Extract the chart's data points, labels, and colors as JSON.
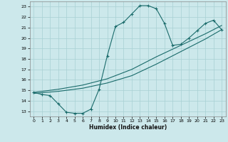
{
  "xlabel": "Humidex (Indice chaleur)",
  "bg_color": "#cce8eb",
  "grid_color": "#a8d0d4",
  "line_color": "#1a6b6b",
  "xlim": [
    -0.5,
    23.5
  ],
  "ylim": [
    12.5,
    23.5
  ],
  "xticks": [
    0,
    1,
    2,
    3,
    4,
    5,
    6,
    7,
    8,
    9,
    10,
    11,
    12,
    13,
    14,
    15,
    16,
    17,
    18,
    19,
    20,
    21,
    22,
    23
  ],
  "yticks": [
    13,
    14,
    15,
    16,
    17,
    18,
    19,
    20,
    21,
    22,
    23
  ],
  "line1_x": [
    0,
    1,
    2,
    3,
    4,
    5,
    6,
    7,
    8,
    9,
    10,
    11,
    12,
    13,
    14,
    15,
    16,
    17,
    18,
    19,
    20,
    21,
    22,
    23
  ],
  "line1_y": [
    14.8,
    14.6,
    14.5,
    13.7,
    12.9,
    12.8,
    12.8,
    13.2,
    15.1,
    18.3,
    21.1,
    21.5,
    22.3,
    23.1,
    23.1,
    22.8,
    21.4,
    19.3,
    19.4,
    20.0,
    20.7,
    21.4,
    21.7,
    20.8
  ],
  "line2_x": [
    0,
    3,
    6,
    9,
    12,
    15,
    18,
    21,
    23
  ],
  "line2_y": [
    14.8,
    15.1,
    15.5,
    16.1,
    17.0,
    18.2,
    19.3,
    20.4,
    21.2
  ],
  "line3_x": [
    0,
    3,
    6,
    9,
    12,
    15,
    18,
    21,
    23
  ],
  "line3_y": [
    14.7,
    14.9,
    15.2,
    15.7,
    16.4,
    17.5,
    18.7,
    19.9,
    20.8
  ]
}
